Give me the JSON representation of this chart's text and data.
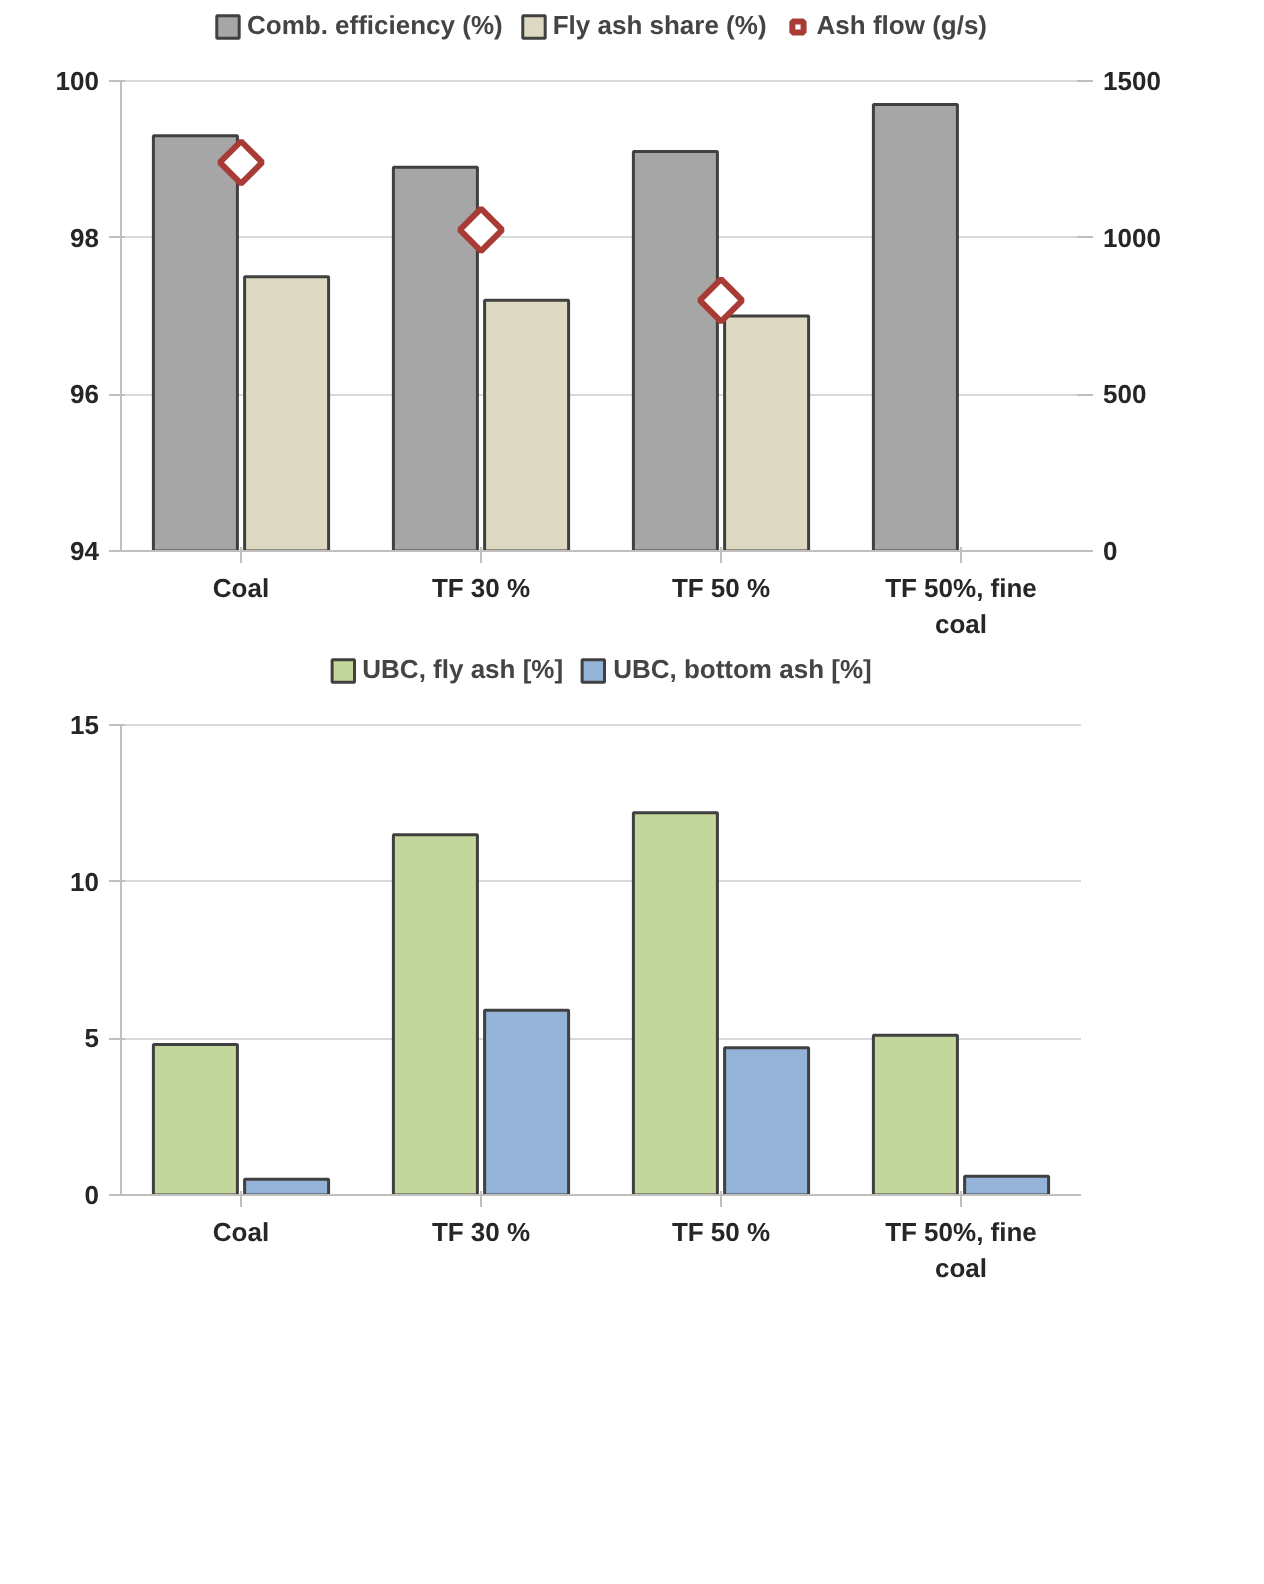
{
  "chart_data": [
    {
      "type": "bar",
      "categories": [
        "Coal",
        "TF 30 %",
        "TF 50 %",
        "TF 50%, fine coal"
      ],
      "series": [
        {
          "name": "Comb. efficiency (%)",
          "color": "#a6a6a6",
          "values": [
            99.3,
            98.9,
            99.1,
            99.7
          ]
        },
        {
          "name": "Fly ash share (%)",
          "color": "#ddd9c3",
          "values": [
            97.5,
            97.2,
            97.0,
            null
          ]
        },
        {
          "name": "Ash flow (g/s)",
          "type": "scatter",
          "axis": "y2",
          "marker": "diamond",
          "color": "#a93b36",
          "values": [
            1240,
            1025,
            800,
            null
          ]
        }
      ],
      "ylim": [
        94,
        100
      ],
      "yticks": [
        94,
        96,
        98,
        100
      ],
      "y2lim": [
        0,
        1500
      ],
      "y2ticks": [
        0,
        500,
        1000,
        1500
      ],
      "grid": "y",
      "legend": "top"
    },
    {
      "type": "bar",
      "categories": [
        "Coal",
        "TF 30 %",
        "TF 50 %",
        "TF 50%, fine coal"
      ],
      "series": [
        {
          "name": "UBC, fly ash [%]",
          "color": "#c3d69b",
          "values": [
            4.8,
            11.5,
            12.2,
            5.1
          ]
        },
        {
          "name": "UBC, bottom ash [%]",
          "color": "#95b3d7",
          "values": [
            0.5,
            5.9,
            4.7,
            0.6
          ]
        }
      ],
      "ylim": [
        0,
        15
      ],
      "yticks": [
        0,
        5,
        10,
        15
      ],
      "grid": "y",
      "legend": "top"
    }
  ]
}
